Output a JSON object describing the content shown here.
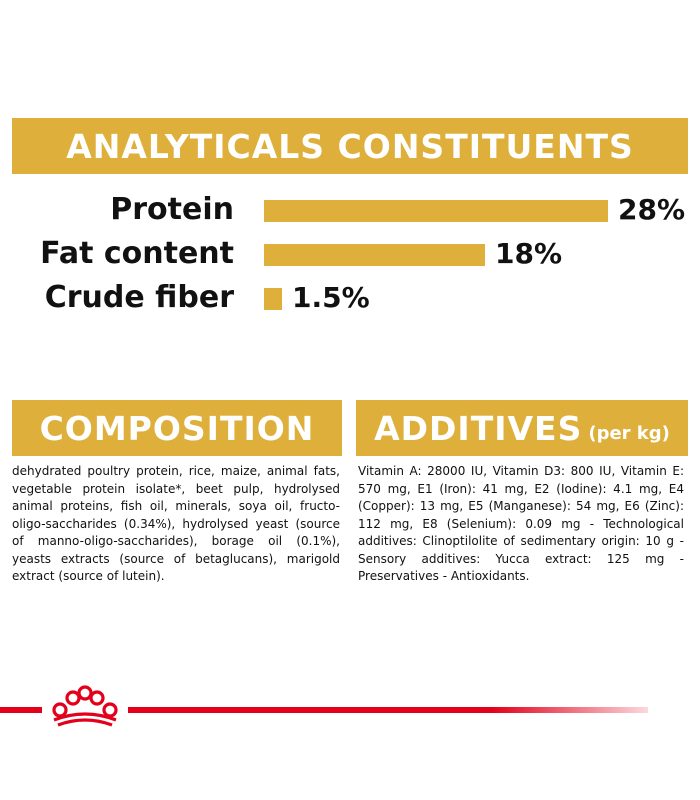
{
  "analytics": {
    "title": "ANALYTICALS CONSTITUENTS",
    "items": [
      {
        "label": "Protein",
        "value": "28%",
        "percent": 28
      },
      {
        "label": "Fat content",
        "value": "18%",
        "percent": 18
      },
      {
        "label": "Crude fiber",
        "value": "1.5%",
        "percent": 1.5
      }
    ]
  },
  "composition": {
    "title": "COMPOSITION",
    "text": "dehydrated poultry protein, rice, maize, animal fats, vegetable protein isolate*, beet pulp, hydrolysed animal proteins, fish oil, minerals, soya oil, fructo-oligo-saccharides (0.34%), hydrolysed yeast (source of manno-oligo-saccharides), borage oil (0.1%), yeasts extracts (source of betaglucans), marigold extract (source of lutein)."
  },
  "additives": {
    "title": "ADDITIVES",
    "subtitle": "(per kg)",
    "text": "Vitamin A: 28000 IU, Vitamin D3: 800 IU, Vitamin E: 570 mg, E1 (Iron): 41 mg, E2 (Iodine): 4.1 mg, E4 (Copper): 13 mg, E5 (Manganese): 54 mg, E6 (Zinc): 112 mg, E8 (Selenium): 0.09 mg - Technological additives: Clinoptilolite of sedimentary origin: 10 g - Sensory additives: Yucca extract: 125 mg - Preservatives - Antioxidants."
  },
  "colors": {
    "gold": "#deaf3b",
    "red": "#e3001b"
  },
  "icons": {
    "logo": "crown-logo-icon"
  }
}
